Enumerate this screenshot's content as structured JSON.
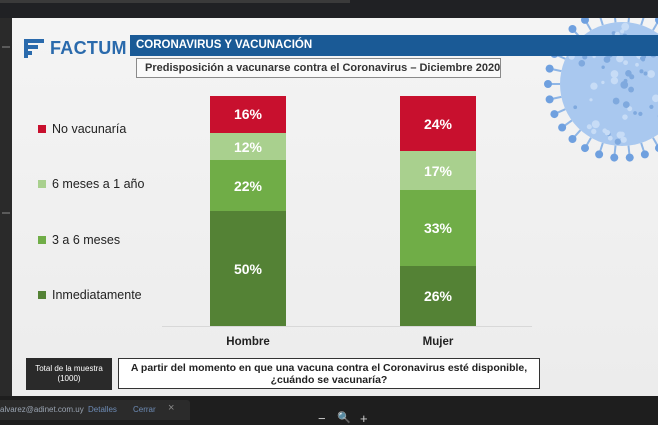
{
  "viewer": {
    "notice": {
      "email": "alvarez@adinet.com.uy",
      "details_label": "Detalles",
      "close_label": "Cerrar",
      "dismiss_icon": "×"
    },
    "zoom": {
      "minus_icon": "−",
      "magnifier_icon": "🔍",
      "plus_icon": "+"
    }
  },
  "slide": {
    "brand": "FACTUM",
    "title": "CORONAVIRUS Y VACUNACIÓN",
    "subtitle": "Predisposición a vacunarse contra el Coronavirus – Diciembre 2020",
    "sample": {
      "line1": "Total de la muestra",
      "line2": "(1000)"
    },
    "question": "A partir del momento en que una vacuna contra el Coronavirus esté disponible, ¿cuándo se vacunaría?",
    "colors": {
      "title_bar": "#1a5a96",
      "brand": "#2a6aac",
      "no_vacunaria": "#c8102e",
      "seis_meses": "#a9d08e",
      "tres_a_seis": "#70ad47",
      "inmediatamente": "#548235"
    }
  },
  "chart_data": {
    "type": "bar",
    "stacked": true,
    "normalized": true,
    "title": "Predisposición a vacunarse contra el Coronavirus – Diciembre 2020",
    "categories": [
      "Hombre",
      "Mujer"
    ],
    "series": [
      {
        "name": "Inmediatamente",
        "values": [
          50,
          26
        ],
        "labels": [
          "50%",
          "26%"
        ],
        "color": "#548235"
      },
      {
        "name": "3 a 6 meses",
        "values": [
          22,
          33
        ],
        "labels": [
          "22%",
          "33%"
        ],
        "color": "#70ad47"
      },
      {
        "name": "6 meses a 1 año",
        "values": [
          12,
          17
        ],
        "labels": [
          "12%",
          "17%"
        ],
        "color": "#a9d08e"
      },
      {
        "name": "No vacunaría",
        "values": [
          16,
          24
        ],
        "labels": [
          "16%",
          "24%"
        ],
        "color": "#c8102e"
      }
    ],
    "legend_order": [
      "No vacunaría",
      "6 meses a 1 año",
      "3 a 6 meses",
      "Inmediatamente"
    ],
    "legend_position": "left",
    "ylim": [
      0,
      100
    ],
    "grid": false,
    "xlabel": "",
    "ylabel": ""
  }
}
